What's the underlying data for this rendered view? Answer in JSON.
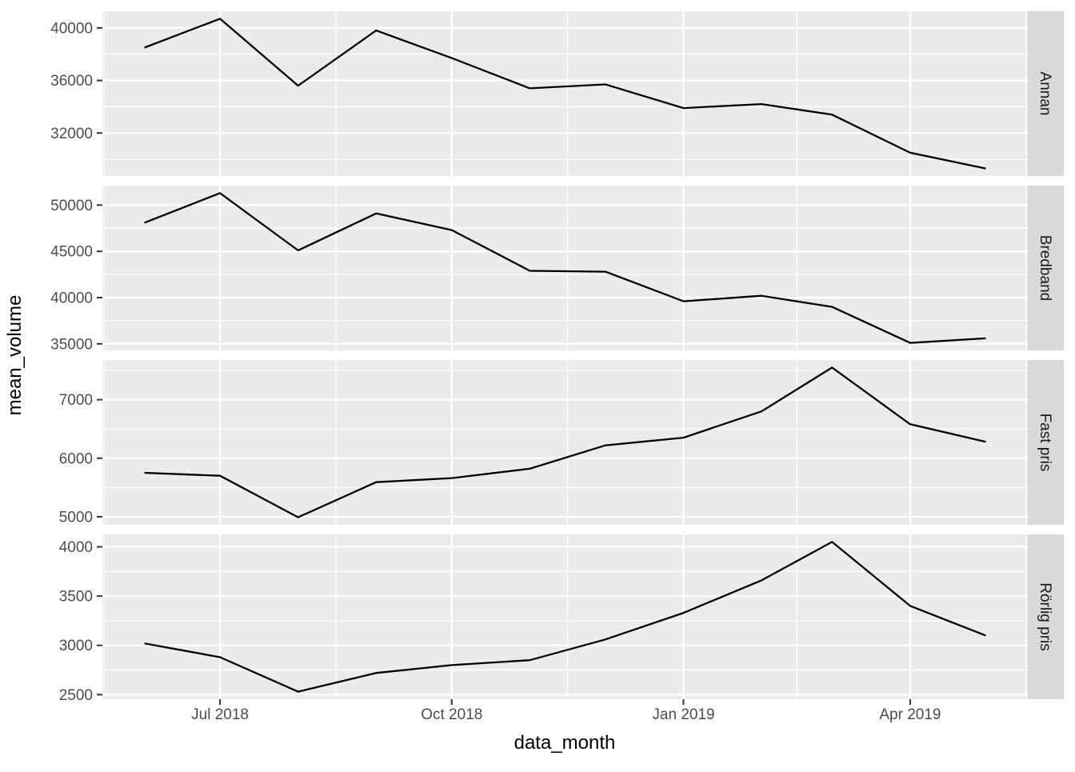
{
  "chart_data": {
    "type": "line",
    "title": "",
    "xlabel": "data_month",
    "ylabel": "mean_volume",
    "legend": "none",
    "grid": "on",
    "facet_layout": "rows",
    "x": {
      "months": [
        "2018-06",
        "2018-07",
        "2018-08",
        "2018-09",
        "2018-10",
        "2018-11",
        "2018-12",
        "2019-01",
        "2019-02",
        "2019-03",
        "2019-04",
        "2019-05"
      ],
      "day_offsets": [
        0,
        30,
        61,
        92,
        122,
        153,
        183,
        214,
        245,
        273,
        304,
        334
      ]
    },
    "x_ticks": [
      {
        "label": "Jul 2018",
        "day": 30
      },
      {
        "label": "Oct 2018",
        "day": 122
      },
      {
        "label": "Jan 2019",
        "day": 214
      },
      {
        "label": "Apr 2019",
        "day": 304
      }
    ],
    "facets": [
      {
        "label": "Annan",
        "y_ticks": [
          32000,
          36000,
          40000
        ],
        "values": [
          38500,
          40700,
          35600,
          39800,
          37700,
          35400,
          35700,
          33900,
          34200,
          33400,
          30500,
          29300
        ]
      },
      {
        "label": "Bredband",
        "y_ticks": [
          35000,
          40000,
          45000,
          50000
        ],
        "values": [
          48100,
          51300,
          45100,
          49100,
          47300,
          42900,
          42800,
          39600,
          40200,
          39000,
          35100,
          35600
        ]
      },
      {
        "label": "Fast pris",
        "y_ticks": [
          5000,
          6000,
          7000
        ],
        "values": [
          5750,
          5700,
          4990,
          5590,
          5660,
          5820,
          6220,
          6350,
          6800,
          7550,
          6580,
          6280
        ]
      },
      {
        "label": "Rörlig pris",
        "y_ticks": [
          2500,
          3000,
          3500,
          4000
        ],
        "values": [
          3020,
          2880,
          2530,
          2720,
          2800,
          2850,
          3060,
          3330,
          3660,
          4050,
          3400,
          3100
        ]
      }
    ],
    "style": {
      "panel_bg": "#EBEBEB",
      "strip_bg": "#D9D9D9",
      "gridline": "#FFFFFF",
      "series_line": "#000000",
      "tick_text": "#4D4D4D",
      "tick_mark": "#333333",
      "strip_text": "#1A1A1A",
      "background": "#FFFFFF"
    }
  }
}
